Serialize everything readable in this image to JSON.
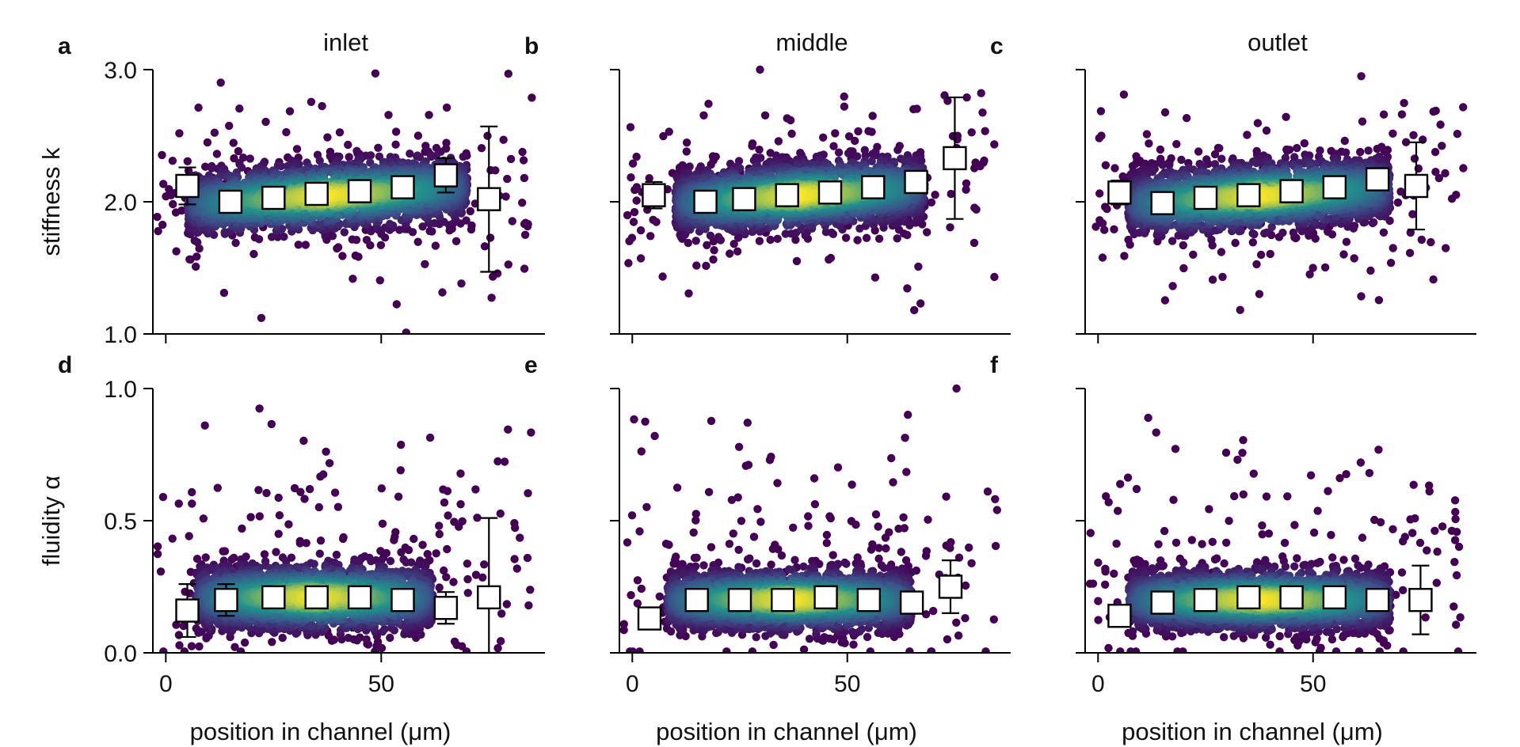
{
  "colors": {
    "density_low": "#440154",
    "density_mid": "#21918c",
    "density_high": "#fde725",
    "marker_fill": "#ffffff",
    "marker_edge": "#000000",
    "axis": "#000000"
  },
  "chart_data": [
    {
      "panel": "a",
      "title": "inlet",
      "type": "scatter",
      "xlabel": "",
      "ylabel": "stiffness k",
      "xlim": [
        -3,
        88
      ],
      "ylim": [
        1.0,
        3.0
      ],
      "xticks": [
        0,
        50
      ],
      "yticks": [
        1.0,
        2.0,
        3.0
      ],
      "ytick_labels": [
        "1.0",
        "2.0",
        "3.0"
      ],
      "xtick_labels": [],
      "show_ytick_labels": true,
      "cloud": {
        "x_range": [
          5,
          70
        ],
        "center": 2.05,
        "slope": 0.002,
        "spread": 0.12
      },
      "outlier_spread": [
        1.0,
        3.0
      ],
      "binned_means": {
        "x": [
          5,
          15,
          25,
          35,
          45,
          55,
          65,
          75
        ],
        "y": [
          2.12,
          2.0,
          2.03,
          2.06,
          2.08,
          2.11,
          2.2,
          2.02
        ],
        "yerr": [
          0.14,
          0.07,
          0.05,
          0.04,
          0.04,
          0.05,
          0.13,
          0.55
        ]
      }
    },
    {
      "panel": "b",
      "title": "middle",
      "type": "scatter",
      "xlabel": "",
      "ylabel": "",
      "xlim": [
        -3,
        88
      ],
      "ylim": [
        1.0,
        3.0
      ],
      "xticks": [
        0,
        50
      ],
      "yticks": [
        1.0,
        2.0,
        3.0
      ],
      "ytick_labels": [],
      "xtick_labels": [],
      "show_ytick_labels": false,
      "cloud": {
        "x_range": [
          10,
          68
        ],
        "center": 2.05,
        "slope": 0.002,
        "spread": 0.12
      },
      "outlier_spread": [
        1.0,
        3.0
      ],
      "binned_means": {
        "x": [
          5,
          17,
          26,
          36,
          46,
          56,
          66,
          75
        ],
        "y": [
          2.05,
          2.0,
          2.02,
          2.05,
          2.07,
          2.11,
          2.15,
          2.33
        ],
        "yerr": [
          0.1,
          0.06,
          0.05,
          0.04,
          0.04,
          0.05,
          0.07,
          0.46
        ]
      }
    },
    {
      "panel": "c",
      "title": "outlet",
      "type": "scatter",
      "xlabel": "",
      "ylabel": "",
      "xlim": [
        -3,
        88
      ],
      "ylim": [
        1.0,
        3.0
      ],
      "xticks": [
        0,
        50
      ],
      "yticks": [
        1.0,
        2.0,
        3.0
      ],
      "ytick_labels": [],
      "xtick_labels": [],
      "show_ytick_labels": false,
      "cloud": {
        "x_range": [
          7,
          68
        ],
        "center": 2.05,
        "slope": 0.002,
        "spread": 0.12
      },
      "outlier_spread": [
        1.0,
        3.0
      ],
      "binned_means": {
        "x": [
          5,
          15,
          25,
          35,
          45,
          55,
          65,
          74
        ],
        "y": [
          2.07,
          1.99,
          2.03,
          2.05,
          2.08,
          2.11,
          2.17,
          2.12
        ],
        "yerr": [
          0.09,
          0.05,
          0.04,
          0.04,
          0.04,
          0.05,
          0.07,
          0.33
        ]
      }
    },
    {
      "panel": "d",
      "title": "",
      "type": "scatter",
      "xlabel": "position in channel (μm)",
      "ylabel": "fluidity α",
      "xlim": [
        -3,
        88
      ],
      "ylim": [
        0.0,
        1.0
      ],
      "xticks": [
        0,
        50
      ],
      "yticks": [
        0.0,
        0.5,
        1.0
      ],
      "ytick_labels": [
        "0.0",
        "0.5",
        "1.0"
      ],
      "xtick_labels": [
        "0",
        "50"
      ],
      "show_ytick_labels": true,
      "cloud": {
        "x_range": [
          7,
          62
        ],
        "center": 0.21,
        "slope": 0.0,
        "spread": 0.06
      },
      "outlier_spread": [
        0.0,
        1.0
      ],
      "binned_means": {
        "x": [
          5,
          14,
          25,
          35,
          45,
          55,
          65,
          75
        ],
        "y": [
          0.16,
          0.2,
          0.21,
          0.21,
          0.21,
          0.2,
          0.17,
          0.21
        ],
        "yerr": [
          0.1,
          0.06,
          0.04,
          0.03,
          0.03,
          0.04,
          0.06,
          0.3
        ]
      }
    },
    {
      "panel": "e",
      "title": "",
      "type": "scatter",
      "xlabel": "position in channel (μm)",
      "ylabel": "",
      "xlim": [
        -3,
        88
      ],
      "ylim": [
        0.0,
        1.0
      ],
      "xticks": [
        0,
        50
      ],
      "yticks": [
        0.0,
        0.5,
        1.0
      ],
      "ytick_labels": [],
      "xtick_labels": [
        "0",
        "50"
      ],
      "show_ytick_labels": false,
      "cloud": {
        "x_range": [
          8,
          65
        ],
        "center": 0.2,
        "slope": 0.0,
        "spread": 0.055
      },
      "outlier_spread": [
        0.0,
        1.0
      ],
      "binned_means": {
        "x": [
          4,
          15,
          25,
          35,
          45,
          55,
          65,
          74
        ],
        "y": [
          0.13,
          0.2,
          0.2,
          0.2,
          0.21,
          0.2,
          0.19,
          0.25
        ],
        "yerr": [
          0.03,
          0.04,
          0.03,
          0.03,
          0.03,
          0.03,
          0.04,
          0.1
        ]
      }
    },
    {
      "panel": "f",
      "title": "",
      "type": "scatter",
      "xlabel": "position in channel (μm)",
      "ylabel": "",
      "xlim": [
        -3,
        88
      ],
      "ylim": [
        0.0,
        1.0
      ],
      "xticks": [
        0,
        50
      ],
      "yticks": [
        0.0,
        0.5,
        1.0
      ],
      "ytick_labels": [],
      "xtick_labels": [
        "0",
        "50"
      ],
      "show_ytick_labels": false,
      "cloud": {
        "x_range": [
          7,
          68
        ],
        "center": 0.2,
        "slope": 0.0,
        "spread": 0.055
      },
      "outlier_spread": [
        0.0,
        1.0
      ],
      "binned_means": {
        "x": [
          5,
          15,
          25,
          35,
          45,
          55,
          65,
          75
        ],
        "y": [
          0.14,
          0.19,
          0.2,
          0.21,
          0.21,
          0.21,
          0.2,
          0.2
        ],
        "yerr": [
          0.03,
          0.04,
          0.03,
          0.03,
          0.03,
          0.03,
          0.04,
          0.13
        ]
      }
    }
  ]
}
